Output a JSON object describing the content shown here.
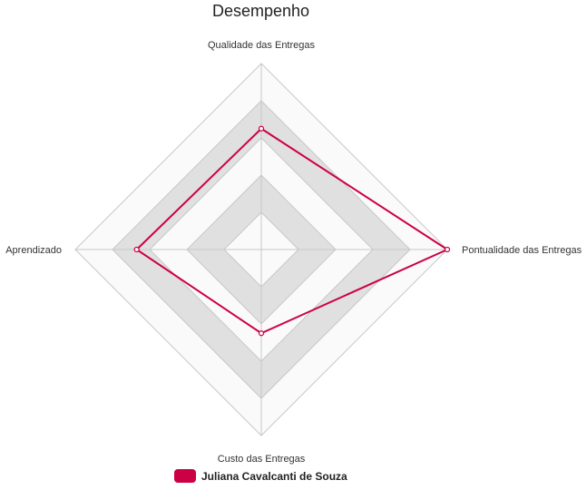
{
  "chart_data": {
    "type": "radar",
    "title": "Desempenho",
    "axes": [
      "Qualidade das Entregas",
      "Pontualidade das Entregas",
      "Custo das Entregas",
      "Aprendizado"
    ],
    "range": [
      0,
      5
    ],
    "rings": 5,
    "series": [
      {
        "name": "Juliana Cavalcanti de Souza",
        "values": [
          3.25,
          5,
          2.25,
          3.35
        ],
        "color": "#cc0044"
      }
    ],
    "legend_position": "bottom"
  }
}
